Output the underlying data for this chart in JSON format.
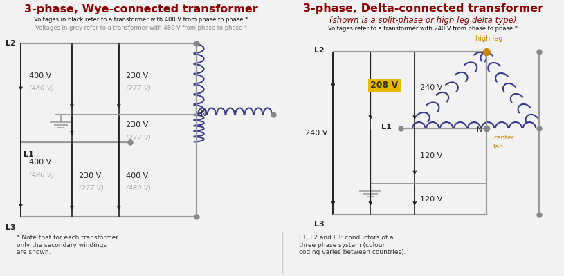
{
  "title_wye": "3-phase, Wye-connected transformer",
  "title_delta": "3-phase, Delta-connected transformer",
  "subtitle_delta": "(shown is a split-phase or high leg delta type)",
  "desc_wye_black": "Voltages in black refer to a transformer with 400 V from phase to phase *",
  "desc_wye_grey": "Voltages in grey refer to a transformer with 480 V from phase to phase *",
  "desc_delta": "Voltages refer to a transformer with 240 V from phase to phase *",
  "footer_left": "* Note that for each transformer\nonly the secondary windings\nare shown.",
  "footer_right": "L1, L2 and L3: conductors of a\nthree phase system (colour\ncoding varies between countries).",
  "bg_color": "#f2f2f2",
  "title_color": "#8B0000",
  "wire_black": "#222222",
  "wire_grey": "#999999",
  "coil_color": "#3a3a8c",
  "node_color": "#888888",
  "high_leg_color": "#cc8800",
  "vol208_bg": "#e8b800",
  "divider_color": "#cccccc",
  "footer_bg": "#e0e0e0"
}
